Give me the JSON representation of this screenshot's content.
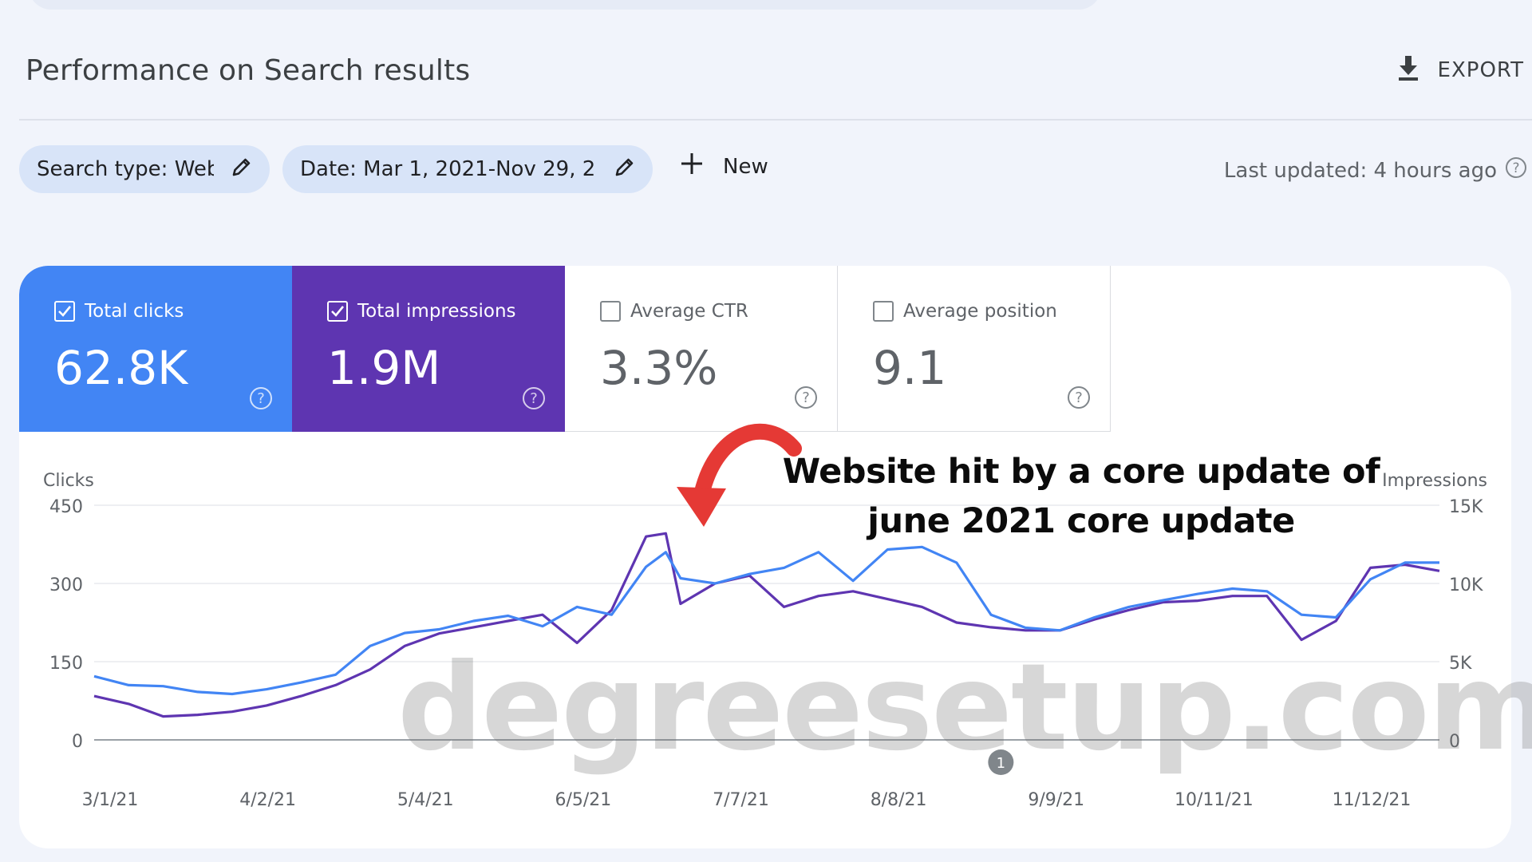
{
  "header": {
    "title": "Performance on Search results",
    "export_label": "EXPORT"
  },
  "filters": {
    "search_type": "Search type: Web",
    "date": "Date: Mar 1, 2021-Nov 29, 2...",
    "new_label": "New",
    "last_updated": "Last updated: 4 hours ago"
  },
  "metrics": [
    {
      "label": "Total clicks",
      "value": "62.8K",
      "checked": true,
      "color": "#4285f4"
    },
    {
      "label": "Total impressions",
      "value": "1.9M",
      "checked": true,
      "color": "#5e35b1"
    },
    {
      "label": "Average CTR",
      "value": "3.3%",
      "checked": false
    },
    {
      "label": "Average position",
      "value": "9.1",
      "checked": false
    }
  ],
  "annotation": {
    "line1": "Website hit by a core update of",
    "line2": "june 2021 core update",
    "arrow_color": "#e53935"
  },
  "watermark": "degreesetup.com",
  "chart_data": {
    "type": "line",
    "x_tick_labels": [
      "3/1/21",
      "4/2/21",
      "5/4/21",
      "6/5/21",
      "7/7/21",
      "8/8/21",
      "9/9/21",
      "10/11/21",
      "11/12/21"
    ],
    "x_range": [
      "3/1/21",
      "11/29/21"
    ],
    "left_axis": {
      "label": "Clicks",
      "ticks": [
        "0",
        "150",
        "300",
        "450"
      ],
      "range": [
        0,
        450
      ]
    },
    "right_axis": {
      "label": "Impressions",
      "ticks": [
        "0",
        "5K",
        "10K",
        "15K"
      ],
      "range": [
        0,
        15000
      ]
    },
    "event_marker": "1",
    "series": [
      {
        "name": "Clicks",
        "axis": "left",
        "color": "#4285f4",
        "x": [
          "3/1/21",
          "3/8/21",
          "3/15/21",
          "3/22/21",
          "3/29/21",
          "4/5/21",
          "4/12/21",
          "4/19/21",
          "4/26/21",
          "5/3/21",
          "5/10/21",
          "5/17/21",
          "5/24/21",
          "5/31/21",
          "6/7/21",
          "6/14/21",
          "6/21/21",
          "6/25/21",
          "6/28/21",
          "7/5/21",
          "7/12/21",
          "7/19/21",
          "7/26/21",
          "8/2/21",
          "8/9/21",
          "8/16/21",
          "8/23/21",
          "8/30/21",
          "9/6/21",
          "9/13/21",
          "9/20/21",
          "9/27/21",
          "10/4/21",
          "10/11/21",
          "10/18/21",
          "10/25/21",
          "11/1/21",
          "11/8/21",
          "11/15/21",
          "11/22/21",
          "11/29/21"
        ],
        "values": [
          122,
          105,
          103,
          92,
          88,
          97,
          110,
          125,
          180,
          205,
          212,
          228,
          238,
          218,
          255,
          240,
          332,
          360,
          310,
          300,
          318,
          330,
          360,
          305,
          365,
          370,
          340,
          240,
          215,
          210,
          235,
          255,
          268,
          280,
          290,
          285,
          240,
          235,
          308,
          340,
          340
        ]
      },
      {
        "name": "Impressions",
        "axis": "right",
        "color": "#5e35b1",
        "x": [
          "3/1/21",
          "3/8/21",
          "3/15/21",
          "3/22/21",
          "3/29/21",
          "4/5/21",
          "4/12/21",
          "4/19/21",
          "4/26/21",
          "5/3/21",
          "5/10/21",
          "5/17/21",
          "5/24/21",
          "5/31/21",
          "6/7/21",
          "6/14/21",
          "6/21/21",
          "6/25/21",
          "6/28/21",
          "7/5/21",
          "7/12/21",
          "7/19/21",
          "7/26/21",
          "8/2/21",
          "8/9/21",
          "8/16/21",
          "8/23/21",
          "8/30/21",
          "9/6/21",
          "9/13/21",
          "9/20/21",
          "9/27/21",
          "10/4/21",
          "10/11/21",
          "10/18/21",
          "10/25/21",
          "11/1/21",
          "11/8/21",
          "11/15/21",
          "11/22/21",
          "11/29/21"
        ],
        "values": [
          2800,
          2300,
          1500,
          1600,
          1800,
          2200,
          2800,
          3500,
          4500,
          6000,
          6800,
          7200,
          7600,
          8000,
          6200,
          8300,
          13000,
          13200,
          8700,
          10000,
          10500,
          8500,
          9200,
          9500,
          9000,
          8500,
          7500,
          7200,
          7000,
          7000,
          7700,
          8300,
          8800,
          8900,
          9200,
          9200,
          6400,
          7600,
          11000,
          11200,
          10800
        ]
      }
    ]
  }
}
